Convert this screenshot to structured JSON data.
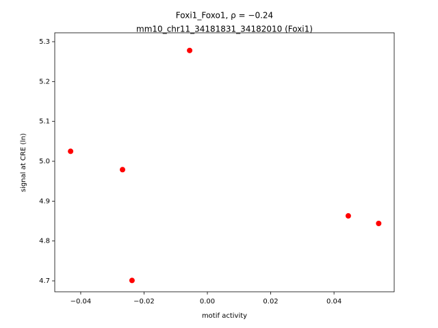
{
  "chart_data": {
    "type": "scatter",
    "title": "Foxi1_Foxo1, ρ = −0.24",
    "subtitle": "mm10_chr11_34181831_34182010 (Foxi1)",
    "x_label": "motif activity",
    "y_label": "signal at CRE (ln)",
    "color": "#ff0000",
    "x": [
      -0.0432,
      -0.0268,
      -0.0238,
      -0.0056,
      0.0445,
      0.0541
    ],
    "values": [
      5.025,
      4.979,
      4.701,
      5.278,
      4.863,
      4.844
    ],
    "xlim": [
      -0.0482,
      0.059
    ],
    "ylim": [
      4.6726,
      5.3223
    ],
    "xticks": [
      {
        "value": -0.04,
        "label": "−0.04"
      },
      {
        "value": -0.02,
        "label": "−0.02"
      },
      {
        "value": 0,
        "label": "0.00"
      },
      {
        "value": 0.02,
        "label": "0.02"
      },
      {
        "value": 0.04,
        "label": "0.04"
      }
    ],
    "yticks": [
      4.7,
      4.8,
      4.9,
      {
        "value": 5,
        "label": "5.0"
      },
      5.1,
      5.2,
      5.3
    ],
    "grid": false
  }
}
